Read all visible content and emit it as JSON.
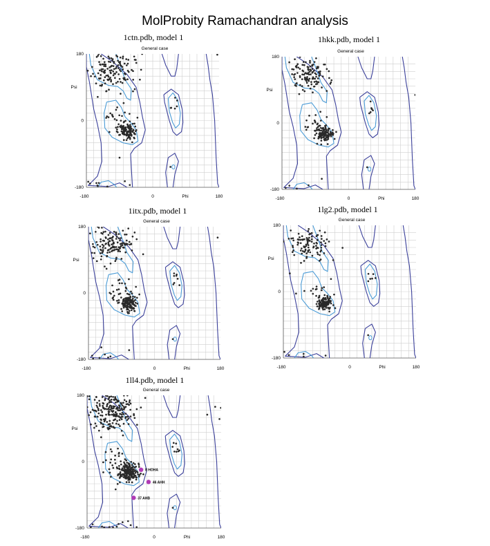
{
  "title": "MolProbity Ramachandran analysis",
  "chart_data": [
    {
      "type": "scatter",
      "title": "1ctn.pdb, model 1",
      "subtitle": "General case",
      "xlabel": "Phi",
      "ylabel": "Psi",
      "xlim": [
        -180,
        180
      ],
      "ylim": [
        -180,
        180
      ],
      "xticks": [
        "-180",
        "0",
        "180"
      ],
      "yticks": [
        "180",
        "0",
        "-180"
      ],
      "grid": true,
      "seed": 11,
      "clusters": [
        {
          "cx": -110,
          "cy": 135,
          "sx": 28,
          "sy": 25,
          "n": 140
        },
        {
          "cx": -70,
          "cy": -28,
          "sx": 12,
          "sy": 12,
          "n": 120
        },
        {
          "cx": -95,
          "cy": 10,
          "sx": 20,
          "sy": 20,
          "n": 25
        },
        {
          "cx": 60,
          "cy": 35,
          "sx": 7,
          "sy": 12,
          "n": 6
        }
      ],
      "extra_points": [
        [
          -170,
          -170
        ],
        [
          -150,
          -175
        ],
        [
          -90,
          -100
        ],
        [
          48,
          -125
        ],
        [
          -175,
          -165
        ]
      ],
      "outliers": []
    },
    {
      "type": "scatter",
      "title": "1hkk.pdb, model 1",
      "subtitle": "General case",
      "xlabel": "Phi",
      "ylabel": "Psi",
      "xlim": [
        -180,
        180
      ],
      "ylim": [
        -180,
        180
      ],
      "xticks": [
        "-180",
        "0",
        "180"
      ],
      "yticks": [
        "180",
        "0",
        "-180"
      ],
      "grid": true,
      "seed": 23,
      "clusters": [
        {
          "cx": -108,
          "cy": 130,
          "sx": 28,
          "sy": 24,
          "n": 120
        },
        {
          "cx": -68,
          "cy": -30,
          "sx": 11,
          "sy": 11,
          "n": 110
        },
        {
          "cx": -95,
          "cy": 5,
          "sx": 18,
          "sy": 18,
          "n": 20
        },
        {
          "cx": 58,
          "cy": 35,
          "sx": 6,
          "sy": 10,
          "n": 6
        }
      ],
      "extra_points": [
        [
          -160,
          -170
        ],
        [
          -140,
          -178
        ],
        [
          50,
          -120
        ],
        [
          -170,
          -176
        ]
      ],
      "outliers": []
    },
    {
      "type": "scatter",
      "title": "1itx.pdb, model 1",
      "subtitle": "General case",
      "xlabel": "Phi",
      "ylabel": "Psi",
      "xlim": [
        -180,
        180
      ],
      "ylim": [
        -180,
        180
      ],
      "xticks": [
        "-180",
        "0",
        "180"
      ],
      "yticks": [
        "180",
        "0",
        "-180"
      ],
      "grid": true,
      "seed": 37,
      "clusters": [
        {
          "cx": -112,
          "cy": 135,
          "sx": 28,
          "sy": 25,
          "n": 140
        },
        {
          "cx": -70,
          "cy": -28,
          "sx": 11,
          "sy": 11,
          "n": 130
        },
        {
          "cx": -98,
          "cy": 8,
          "sx": 20,
          "sy": 20,
          "n": 25
        },
        {
          "cx": 58,
          "cy": 40,
          "sx": 6,
          "sy": 10,
          "n": 8
        }
      ],
      "extra_points": [
        [
          -170,
          -170
        ],
        [
          -120,
          -172
        ],
        [
          -150,
          -176
        ],
        [
          50,
          -125
        ]
      ],
      "outliers": []
    },
    {
      "type": "scatter",
      "title": "1lg2.pdb, model 1",
      "subtitle": "General case",
      "xlabel": "Phi",
      "ylabel": "Psi",
      "xlim": [
        -180,
        180
      ],
      "ylim": [
        -180,
        180
      ],
      "xticks": [
        "-180",
        "0",
        "180"
      ],
      "yticks": [
        "180",
        "0",
        "-180"
      ],
      "grid": true,
      "seed": 41,
      "clusters": [
        {
          "cx": -108,
          "cy": 130,
          "sx": 27,
          "sy": 24,
          "n": 110
        },
        {
          "cx": -68,
          "cy": -30,
          "sx": 10,
          "sy": 10,
          "n": 100
        },
        {
          "cx": -95,
          "cy": 5,
          "sx": 18,
          "sy": 18,
          "n": 18
        },
        {
          "cx": 58,
          "cy": 35,
          "sx": 6,
          "sy": 10,
          "n": 6
        }
      ],
      "extra_points": [
        [
          -165,
          -172
        ],
        [
          -125,
          -176
        ],
        [
          50,
          -118
        ]
      ],
      "outliers": []
    },
    {
      "type": "scatter",
      "title": "1ll4.pdb, model 1",
      "subtitle": "General case",
      "xlabel": "Phi",
      "ylabel": "Psi",
      "xlim": [
        -180,
        180
      ],
      "ylim": [
        -180,
        180
      ],
      "xticks": [
        "-180",
        "0",
        "180"
      ],
      "yticks": [
        "180",
        "0",
        "-180"
      ],
      "grid": true,
      "seed": 53,
      "clusters": [
        {
          "cx": -115,
          "cy": 138,
          "sx": 30,
          "sy": 25,
          "n": 220
        },
        {
          "cx": -68,
          "cy": -30,
          "sx": 12,
          "sy": 12,
          "n": 190
        },
        {
          "cx": -100,
          "cy": 0,
          "sx": 22,
          "sy": 22,
          "n": 40
        },
        {
          "cx": 58,
          "cy": 38,
          "sx": 7,
          "sy": 12,
          "n": 8
        }
      ],
      "extra_points": [
        [
          -165,
          -170
        ],
        [
          -140,
          -176
        ],
        [
          -170,
          -178
        ],
        [
          50,
          -125
        ]
      ],
      "outliers": [
        {
          "phi": -35,
          "psi": -22,
          "label": "8 HOHA"
        },
        {
          "phi": -15,
          "psi": -55,
          "label": "46 AHH"
        },
        {
          "phi": -55,
          "psi": -98,
          "label": "37 AHB"
        }
      ]
    }
  ]
}
